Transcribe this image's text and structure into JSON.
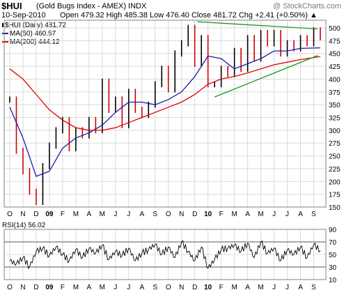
{
  "header": {
    "symbol": "$HUI",
    "description": "(Gold Bugs Index - AMEX) INDX",
    "watermark": "@ StockCharts.com",
    "date": "10-Sep-2010",
    "quote": "Open 479.32  High 485.38  Low 476.40  Close 481.72  Chg +2.41 (+0.50%) ▲"
  },
  "legend": {
    "price": "$HUI (Daily) 481.72",
    "ma50": "MA(50) 460.57",
    "ma200": "MA(200) 444.12"
  },
  "rsi_label": "RSI(14) 56.02",
  "colors": {
    "up_bar": "#000000",
    "down_bar": "#cc0000",
    "ma50": "#1a1aa6",
    "ma200": "#e00000",
    "trendline": "#1a9a1a",
    "grid": "#d9d9d9"
  },
  "chart_data": [
    {
      "type": "line",
      "title": "$HUI (Daily)",
      "x_ticks": [
        "O",
        "N",
        "D",
        "09",
        "F",
        "M",
        "A",
        "M",
        "J",
        "J",
        "A",
        "S",
        "O",
        "N",
        "D",
        "10",
        "F",
        "M",
        "A",
        "M",
        "J",
        "J",
        "A",
        "S"
      ],
      "ylim": [
        150,
        515
      ],
      "y_ticks": [
        150,
        175,
        200,
        225,
        250,
        275,
        300,
        325,
        350,
        375,
        400,
        425,
        450,
        475,
        500
      ],
      "grid": true,
      "y_axis_side": "right",
      "series": [
        {
          "name": "$HUI (Daily)",
          "x": [
            0,
            0.5,
            1,
            1.5,
            2,
            2.5,
            3,
            3.5,
            4,
            4.5,
            5,
            5.5,
            6,
            6.5,
            7,
            7.5,
            8,
            8.5,
            9,
            9.5,
            10,
            10.5,
            11,
            11.5,
            12,
            12.5,
            13,
            13.5,
            14,
            14.5,
            15,
            15.5,
            16,
            16.5,
            17,
            17.5,
            18,
            18.5,
            19,
            19.5,
            20,
            20.5,
            21,
            21.5,
            22,
            22.5,
            23,
            23.5
          ],
          "values": [
            360,
            260,
            220,
            180,
            160,
            230,
            270,
            300,
            320,
            265,
            300,
            290,
            320,
            300,
            395,
            340,
            360,
            310,
            375,
            340,
            330,
            350,
            390,
            420,
            380,
            450,
            470,
            500,
            430,
            480,
            390,
            390,
            420,
            410,
            455,
            420,
            480,
            440,
            490,
            470,
            490,
            450,
            470,
            460,
            480,
            470,
            495,
            482
          ]
        },
        {
          "name": "MA(50)",
          "x": [
            0,
            1,
            2,
            3,
            4,
            5,
            6,
            7,
            8,
            9,
            10,
            11,
            12,
            13,
            14,
            15,
            16,
            17,
            18,
            19,
            20,
            21,
            22,
            23.5
          ],
          "values": [
            345,
            285,
            210,
            220,
            265,
            285,
            295,
            310,
            335,
            355,
            355,
            350,
            360,
            375,
            405,
            445,
            440,
            420,
            430,
            440,
            455,
            455,
            460,
            461
          ]
        },
        {
          "name": "MA(200)",
          "x": [
            0,
            1,
            2,
            3,
            4,
            5,
            6,
            7,
            8,
            9,
            10,
            11,
            12,
            13,
            14,
            15,
            16,
            17,
            18,
            19,
            20,
            21,
            22,
            23.5
          ],
          "values": [
            420,
            400,
            370,
            340,
            320,
            305,
            300,
            300,
            305,
            315,
            325,
            335,
            345,
            355,
            370,
            390,
            400,
            405,
            412,
            420,
            428,
            433,
            438,
            444
          ]
        }
      ],
      "trendlines": [
        {
          "name": "upper",
          "x": [
            14.2,
            23.3
          ],
          "values": [
            512,
            498
          ]
        },
        {
          "name": "lower",
          "x": [
            15.5,
            23.3
          ],
          "values": [
            365,
            446
          ]
        }
      ]
    },
    {
      "type": "line",
      "title": "RSI(14)",
      "x_ticks": [
        "O",
        "N",
        "D",
        "09",
        "F",
        "M",
        "A",
        "M",
        "J",
        "J",
        "A",
        "S",
        "O",
        "N",
        "D",
        "10",
        "F",
        "M",
        "A",
        "M",
        "J",
        "J",
        "A",
        "S"
      ],
      "ylim": [
        10,
        90
      ],
      "y_ticks": [
        10,
        30,
        50,
        70,
        90
      ],
      "reference_lines": [
        30,
        70
      ],
      "series": [
        {
          "name": "RSI(14)",
          "x": [
            0,
            0.5,
            1,
            1.5,
            2,
            2.5,
            3,
            3.5,
            4,
            4.5,
            5,
            5.5,
            6,
            6.5,
            7,
            7.5,
            8,
            8.5,
            9,
            9.5,
            10,
            10.5,
            11,
            11.5,
            12,
            12.5,
            13,
            13.5,
            14,
            14.5,
            15,
            15.5,
            16,
            16.5,
            17,
            17.5,
            18,
            18.5,
            19,
            19.5,
            20,
            20.5,
            21,
            21.5,
            22,
            22.5,
            23,
            23.5
          ],
          "values": [
            40,
            35,
            45,
            30,
            55,
            60,
            48,
            62,
            50,
            40,
            58,
            45,
            60,
            52,
            65,
            42,
            55,
            48,
            60,
            40,
            52,
            58,
            66,
            50,
            62,
            45,
            70,
            55,
            40,
            62,
            28,
            42,
            58,
            60,
            65,
            55,
            68,
            45,
            70,
            52,
            60,
            40,
            58,
            50,
            62,
            45,
            66,
            56
          ]
        }
      ]
    }
  ]
}
